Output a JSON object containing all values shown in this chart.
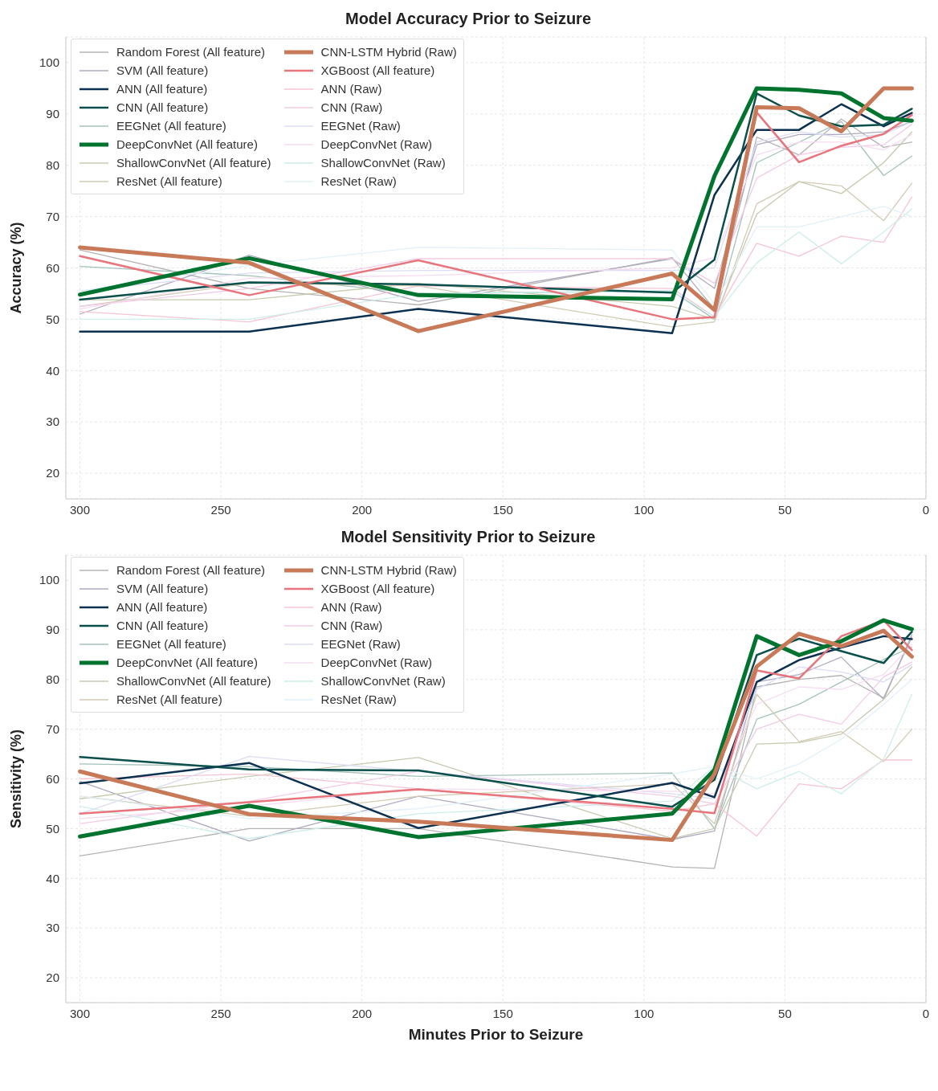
{
  "chart_data": [
    {
      "type": "line",
      "title": "Model Accuracy Prior to Seizure",
      "ylabel": "Accuracy (%)",
      "x": [
        300,
        240,
        180,
        90,
        75,
        60,
        45,
        30,
        15,
        5
      ],
      "xlim": [
        305,
        0
      ],
      "ylim": [
        15,
        105
      ],
      "xticks": [
        300,
        250,
        200,
        150,
        100,
        50,
        0
      ],
      "yticks": [
        20,
        30,
        40,
        50,
        60,
        70,
        80,
        90,
        100
      ],
      "grid": true,
      "legend": "top left",
      "series": [
        {
          "name": "Random Forest (All feature)",
          "color": "#b4b4b4",
          "values": [
            63.5,
            56.0,
            52.8,
            62.0,
            52.0,
            85.5,
            82.0,
            89.0,
            83.5,
            84.5
          ]
        },
        {
          "name": "SVM (All feature)",
          "color": "#b0aac0",
          "values": [
            51.0,
            62.5,
            53.5,
            61.8,
            56.0,
            84.0,
            86.0,
            86.0,
            86.5,
            88.5
          ]
        },
        {
          "name": "ANN (All feature)",
          "color": "#0b3050",
          "values": [
            47.6,
            47.6,
            52.0,
            47.3,
            74.2,
            86.9,
            86.9,
            91.9,
            87.6,
            90.2
          ]
        },
        {
          "name": "CNN (All feature)",
          "color": "#0b4f4c",
          "values": [
            53.8,
            57.2,
            56.8,
            55.2,
            61.6,
            94.0,
            89.7,
            87.6,
            87.9,
            91.0
          ]
        },
        {
          "name": "EEGNet (All feature)",
          "color": "#a4c2ba",
          "values": [
            60.3,
            58.5,
            55.0,
            55.5,
            50.0,
            80.5,
            84.5,
            88.5,
            78.0,
            81.8
          ]
        },
        {
          "name": "DeepConvNet (All feature)",
          "color": "#00742e",
          "values": [
            54.8,
            61.9,
            54.7,
            53.9,
            77.9,
            95.0,
            94.7,
            94.0,
            89.2,
            88.7
          ]
        },
        {
          "name": "ShallowConvNet (All feature)",
          "color": "#c6cbb0",
          "values": [
            53.8,
            53.8,
            57.0,
            52.5,
            50.0,
            70.5,
            76.8,
            74.5,
            80.5,
            86.5
          ]
        },
        {
          "name": "ResNet (All feature)",
          "color": "#d2cab4",
          "values": [
            52.5,
            57.0,
            56.5,
            48.5,
            49.5,
            72.5,
            76.8,
            76.0,
            69.2,
            76.5
          ]
        },
        {
          "name": "CNN-LSTM Hybrid (Raw)",
          "color": "#c87a58",
          "values": [
            64.0,
            61.0,
            47.7,
            58.9,
            51.8,
            91.3,
            91.1,
            86.6,
            95.0,
            95.0
          ]
        },
        {
          "name": "XGBoost (All feature)",
          "color": "#e8747c",
          "values": [
            62.3,
            54.7,
            61.5,
            50.0,
            50.4,
            90.3,
            80.6,
            83.8,
            86.1,
            89.8
          ]
        },
        {
          "name": "ANN (Raw)",
          "color": "#f6c4d2",
          "values": [
            51.5,
            49.5,
            56.5,
            56.0,
            50.5,
            64.8,
            62.3,
            66.2,
            65.0,
            73.8
          ]
        },
        {
          "name": "CNN (Raw)",
          "color": "#f2cbe6",
          "values": [
            52.5,
            56.0,
            61.8,
            61.8,
            57.0,
            77.5,
            82.0,
            83.5,
            84.0,
            88.0
          ]
        },
        {
          "name": "EEGNet (Raw)",
          "color": "#dcdcf6",
          "values": [
            55.5,
            59.0,
            59.5,
            59.5,
            60.0,
            84.5,
            86.5,
            85.5,
            86.0,
            88.5
          ]
        },
        {
          "name": "DeepConvNet (Raw)",
          "color": "#f6dcf0",
          "values": [
            52.0,
            58.0,
            58.5,
            60.0,
            62.0,
            82.0,
            84.5,
            84.5,
            83.0,
            86.0
          ]
        },
        {
          "name": "ShallowConvNet (Raw)",
          "color": "#cdeeea",
          "values": [
            50.0,
            50.0,
            55.0,
            55.5,
            50.5,
            61.0,
            67.0,
            60.8,
            67.0,
            71.5
          ]
        },
        {
          "name": "ResNet (Raw)",
          "color": "#e2f0f8",
          "values": [
            55.5,
            60.5,
            64.0,
            63.5,
            53.0,
            68.0,
            68.0,
            70.0,
            72.0,
            70.0
          ]
        }
      ]
    },
    {
      "type": "line",
      "title": "Model Sensitivity Prior to Seizure",
      "xlabel": "Minutes Prior to Seizure",
      "ylabel": "Sensitivity (%)",
      "x": [
        300,
        240,
        180,
        90,
        75,
        60,
        45,
        30,
        15,
        5
      ],
      "xlim": [
        305,
        0
      ],
      "ylim": [
        15,
        105
      ],
      "xticks": [
        300,
        250,
        200,
        150,
        100,
        50,
        0
      ],
      "yticks": [
        20,
        30,
        40,
        50,
        60,
        70,
        80,
        90,
        100
      ],
      "grid": true,
      "legend": "top left",
      "series": [
        {
          "name": "Random Forest (All feature)",
          "color": "#b4b4b4",
          "values": [
            44.5,
            50.0,
            50.0,
            42.3,
            42.0,
            78.5,
            80.0,
            80.8,
            76.3,
            88.5
          ]
        },
        {
          "name": "SVM (All feature)",
          "color": "#b0aac0",
          "values": [
            59.5,
            47.5,
            56.5,
            47.8,
            49.5,
            79.5,
            81.0,
            84.5,
            76.0,
            89.0
          ]
        },
        {
          "name": "ANN (All feature)",
          "color": "#0b3050",
          "values": [
            59.1,
            63.2,
            50.1,
            59.2,
            56.3,
            79.5,
            83.9,
            86.4,
            88.7,
            88.1
          ]
        },
        {
          "name": "CNN (All feature)",
          "color": "#0b4f4c",
          "values": [
            64.4,
            61.9,
            61.7,
            54.4,
            59.8,
            84.9,
            88.2,
            85.7,
            83.3,
            89.6
          ]
        },
        {
          "name": "EEGNet (All feature)",
          "color": "#a4c2ba",
          "values": [
            63.0,
            62.5,
            60.5,
            61.2,
            50.0,
            72.0,
            75.0,
            79.5,
            84.0,
            86.5
          ]
        },
        {
          "name": "DeepConvNet (All feature)",
          "color": "#00742e",
          "values": [
            48.4,
            54.6,
            48.3,
            53.0,
            61.8,
            88.7,
            84.9,
            87.7,
            91.9,
            90.1
          ]
        },
        {
          "name": "ShallowConvNet (All feature)",
          "color": "#c6cbb0",
          "values": [
            56.0,
            60.5,
            64.3,
            48.0,
            50.0,
            67.0,
            67.3,
            69.0,
            76.0,
            82.5
          ]
        },
        {
          "name": "ResNet (All feature)",
          "color": "#d2cab4",
          "values": [
            56.5,
            52.5,
            56.5,
            59.0,
            51.0,
            77.0,
            67.5,
            69.5,
            63.5,
            70.0
          ]
        },
        {
          "name": "CNN-LSTM Hybrid (Raw)",
          "color": "#c87a58",
          "values": [
            61.5,
            52.9,
            51.4,
            47.7,
            61.0,
            82.6,
            89.2,
            86.7,
            89.8,
            84.6
          ]
        },
        {
          "name": "XGBoost (All feature)",
          "color": "#e8747c",
          "values": [
            53.0,
            55.3,
            57.9,
            54.0,
            53.1,
            81.8,
            80.2,
            88.7,
            91.9,
            85.9
          ]
        },
        {
          "name": "ANN (Raw)",
          "color": "#f6c4d2",
          "values": [
            60.0,
            61.0,
            58.0,
            53.5,
            55.0,
            48.5,
            59.0,
            58.0,
            63.8,
            63.8
          ]
        },
        {
          "name": "CNN (Raw)",
          "color": "#f2cbe6",
          "values": [
            51.0,
            55.5,
            61.5,
            56.5,
            55.0,
            70.0,
            73.0,
            71.0,
            80.5,
            83.5
          ]
        },
        {
          "name": "EEGNet (Raw)",
          "color": "#dcdcf6",
          "values": [
            53.0,
            64.5,
            61.5,
            57.0,
            56.0,
            78.0,
            82.5,
            81.5,
            79.5,
            83.0
          ]
        },
        {
          "name": "DeepConvNet (Raw)",
          "color": "#f6dcf0",
          "values": [
            52.0,
            54.5,
            58.0,
            57.5,
            57.0,
            75.0,
            78.5,
            78.0,
            81.0,
            87.0
          ]
        },
        {
          "name": "ShallowConvNet (Raw)",
          "color": "#cdeeea",
          "values": [
            54.5,
            48.0,
            53.0,
            55.5,
            62.5,
            58.0,
            61.5,
            57.0,
            64.0,
            77.0
          ]
        },
        {
          "name": "ResNet (Raw)",
          "color": "#e2f0f8",
          "values": [
            56.5,
            52.0,
            54.0,
            61.0,
            62.5,
            60.0,
            63.0,
            68.0,
            75.0,
            80.0
          ]
        }
      ]
    }
  ]
}
